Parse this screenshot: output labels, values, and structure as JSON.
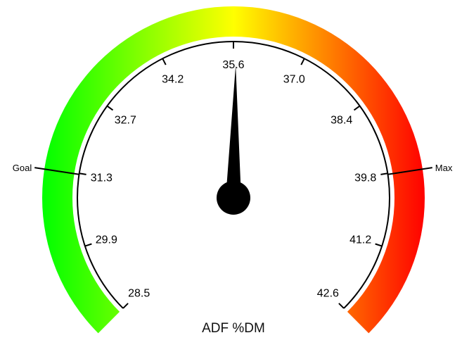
{
  "chart_data": {
    "type": "gauge",
    "title": "ADF %DM",
    "min": 28.5,
    "max": 42.6,
    "value": 35.6,
    "tick_labels": [
      "28.5",
      "29.9",
      "31.3",
      "32.7",
      "34.2",
      "35.6",
      "37.0",
      "38.4",
      "39.8",
      "41.2",
      "42.6"
    ],
    "markers": [
      {
        "label": "Goal",
        "value": 31.3
      },
      {
        "label": "Max",
        "value": 39.8
      }
    ],
    "color_band": {
      "start_color": "#00ff00",
      "mid_color": "#ffff00",
      "end_color": "#ff0000"
    },
    "needle_color": "#000000"
  }
}
